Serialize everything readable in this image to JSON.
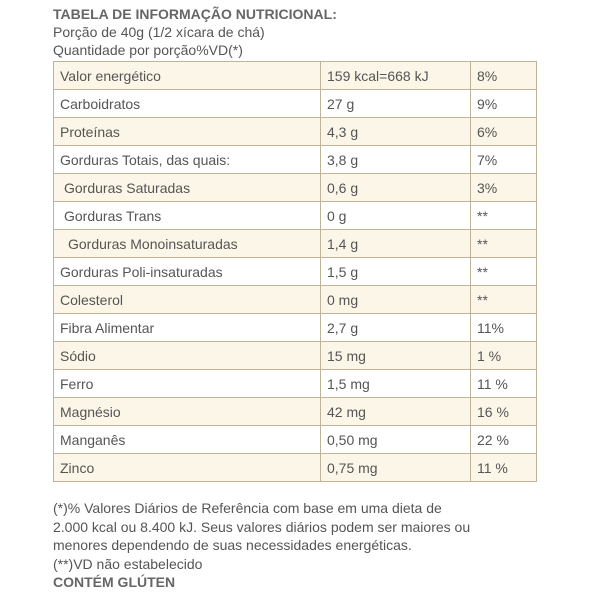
{
  "header": {
    "title": "TABELA DE INFORMAÇÃO NUTRICIONAL:",
    "portion": "Porção de 40g (1/2 xícara de chá)",
    "quantity": "Quantidade por porção%VD(*)"
  },
  "table": {
    "rows": [
      [
        "Valor energético",
        "159 kcal=668 kJ",
        "8%"
      ],
      [
        "Carboidratos",
        "27 g",
        "9%"
      ],
      [
        "Proteínas",
        "4,3 g",
        "6%"
      ],
      [
        "Gorduras Totais, das quais:",
        "3,8 g",
        "7%"
      ],
      [
        "Gorduras Saturadas",
        "0,6 g",
        "3%"
      ],
      [
        "Gorduras Trans",
        "0 g",
        "**"
      ],
      [
        "Gorduras Monoinsaturadas",
        "1,4 g",
        "**"
      ],
      [
        "Gorduras Poli-insaturadas",
        "1,5 g",
        "**"
      ],
      [
        "Colesterol",
        "0 mg",
        "**"
      ],
      [
        "Fibra Alimentar",
        "2,7 g",
        "11%"
      ],
      [
        "Sódio",
        "15 mg",
        "1 %"
      ],
      [
        "Ferro",
        "1,5 mg",
        "11 %"
      ],
      [
        "Magnésio",
        "42 mg",
        "16 %"
      ],
      [
        "Manganês",
        "0,50 mg",
        "22 %"
      ],
      [
        "Zinco",
        "0,75 mg",
        "11 %"
      ]
    ]
  },
  "footer": {
    "lines": [
      "(*)% Valores Diários de Referência com base em uma dieta de",
      "2.000 kcal ou 8.400 kJ. Seus valores diários podem ser maiores ou",
      "menores dependendo de suas necessidades energéticas.",
      "(**)VD não estabelecido",
      "CONTÉM GLÚTEN"
    ]
  }
}
